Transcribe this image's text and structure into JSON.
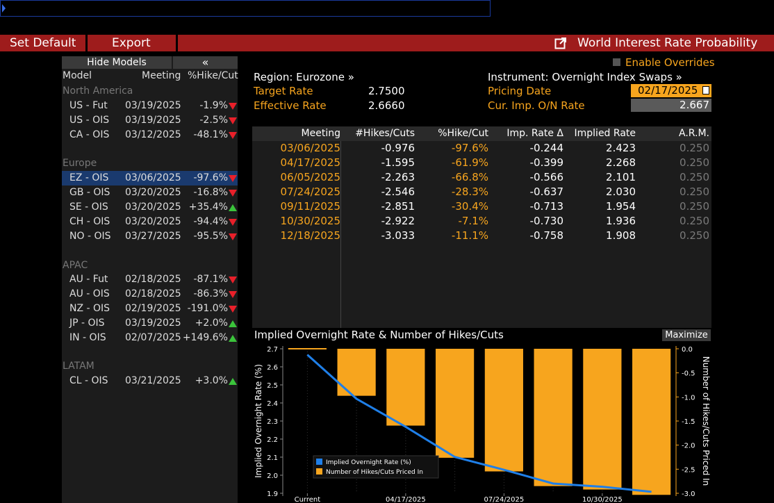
{
  "toolbar": {
    "set_default": "Set Default",
    "export": "Export",
    "title": "World Interest Rate Probability"
  },
  "left_panel": {
    "hide_models": "Hide Models",
    "collapse": "«",
    "headers": {
      "model": "Model",
      "meeting": "Meeting",
      "hike": "%Hike/Cut"
    },
    "groups": [
      {
        "name": "North America",
        "rows": [
          {
            "model": "US - Fut",
            "meeting": "03/19/2025",
            "hike": "-1.9%",
            "dir": "down"
          },
          {
            "model": "US - OIS",
            "meeting": "03/19/2025",
            "hike": "-2.5%",
            "dir": "down"
          },
          {
            "model": "CA - OIS",
            "meeting": "03/12/2025",
            "hike": "-48.1%",
            "dir": "down"
          }
        ]
      },
      {
        "name": "Europe",
        "rows": [
          {
            "model": "EZ - OIS",
            "meeting": "03/06/2025",
            "hike": "-97.6%",
            "dir": "down",
            "selected": true
          },
          {
            "model": "GB - OIS",
            "meeting": "03/20/2025",
            "hike": "-16.8%",
            "dir": "down"
          },
          {
            "model": "SE - OIS",
            "meeting": "03/20/2025",
            "hike": "+35.4%",
            "dir": "up"
          },
          {
            "model": "CH - OIS",
            "meeting": "03/20/2025",
            "hike": "-94.4%",
            "dir": "down"
          },
          {
            "model": "NO - OIS",
            "meeting": "03/27/2025",
            "hike": "-95.5%",
            "dir": "down"
          }
        ]
      },
      {
        "name": "APAC",
        "rows": [
          {
            "model": "AU - Fut",
            "meeting": "02/18/2025",
            "hike": "-87.1%",
            "dir": "down"
          },
          {
            "model": "AU - OIS",
            "meeting": "02/18/2025",
            "hike": "-86.3%",
            "dir": "down"
          },
          {
            "model": "NZ - OIS",
            "meeting": "02/19/2025",
            "hike": "-191.0%",
            "dir": "down"
          },
          {
            "model": "JP - OIS",
            "meeting": "03/19/2025",
            "hike": "+2.0%",
            "dir": "up"
          },
          {
            "model": "IN - OIS",
            "meeting": "02/07/2025",
            "hike": "+149.6%",
            "dir": "up"
          }
        ]
      },
      {
        "name": "LATAM",
        "rows": [
          {
            "model": "CL - OIS",
            "meeting": "03/21/2025",
            "hike": "+3.0%",
            "dir": "up"
          }
        ]
      }
    ]
  },
  "info": {
    "enable_overrides": "Enable Overrides",
    "region": "Region: Eurozone »",
    "instrument": "Instrument: Overnight Index Swaps »",
    "target_rate_label": "Target Rate",
    "target_rate": "2.7500",
    "effective_rate_label": "Effective Rate",
    "effective_rate": "2.6660",
    "pricing_date_label": "Pricing Date",
    "pricing_date": "02/17/2025",
    "cur_imp_label": "Cur. Imp. O/N Rate",
    "cur_imp": "2.667"
  },
  "table": {
    "headers": [
      "Meeting",
      "#Hikes/Cuts",
      "%Hike/Cut",
      "Imp. Rate Δ",
      "Implied Rate",
      "A.R.M."
    ],
    "rows": [
      [
        "03/06/2025",
        "-0.976",
        "-97.6%",
        "-0.244",
        "2.423",
        "0.250"
      ],
      [
        "04/17/2025",
        "-1.595",
        "-61.9%",
        "-0.399",
        "2.268",
        "0.250"
      ],
      [
        "06/05/2025",
        "-2.263",
        "-66.8%",
        "-0.566",
        "2.101",
        "0.250"
      ],
      [
        "07/24/2025",
        "-2.546",
        "-28.3%",
        "-0.637",
        "2.030",
        "0.250"
      ],
      [
        "09/11/2025",
        "-2.851",
        "-30.4%",
        "-0.713",
        "1.954",
        "0.250"
      ],
      [
        "10/30/2025",
        "-2.922",
        "-7.1%",
        "-0.730",
        "1.936",
        "0.250"
      ],
      [
        "12/18/2025",
        "-3.033",
        "-11.1%",
        "-0.758",
        "1.908",
        "0.250"
      ]
    ]
  },
  "chart_header": {
    "title": "Implied Overnight Rate & Number of Hikes/Cuts",
    "maximize": "Maximize"
  },
  "colors": {
    "orange": "#f7a51e",
    "blue": "#1f7fe8",
    "red_toolbar": "#9e1c1c"
  },
  "chart_data": {
    "type": "bar",
    "categories": [
      "Current",
      "03/06/2025",
      "04/17/2025",
      "06/05/2025",
      "07/24/2025",
      "09/11/2025",
      "10/30/2025",
      "12/18/2025"
    ],
    "x_tick_labels": [
      "Current",
      "04/17/2025",
      "07/24/2025",
      "10/30/2025"
    ],
    "series": [
      {
        "name": "Implied Overnight Rate (%)",
        "type": "line",
        "axis": "left",
        "values": [
          2.667,
          2.423,
          2.268,
          2.101,
          2.03,
          1.954,
          1.936,
          1.908
        ]
      },
      {
        "name": "Number of Hikes/Cuts Priced In",
        "type": "bar",
        "axis": "right",
        "values": [
          0,
          -0.976,
          -1.595,
          -2.263,
          -2.546,
          -2.851,
          -2.922,
          -3.033
        ]
      }
    ],
    "ylabel": "Implied Overnight Rate (%)",
    "ylabel_right": "Number of Hikes/Cuts Priced In",
    "ylim": [
      1.9,
      2.7
    ],
    "ylim_right": [
      -3.0,
      0.0
    ],
    "yticks": [
      "2.7",
      "2.6",
      "2.5",
      "2.4",
      "2.3",
      "2.2",
      "2.1",
      "2.0",
      "1.9"
    ],
    "yticks_right": [
      "0.0",
      "-0.5",
      "-1.0",
      "-1.5",
      "-2.0",
      "-2.5",
      "-3.0"
    ],
    "legend_position": "bottom-left"
  }
}
